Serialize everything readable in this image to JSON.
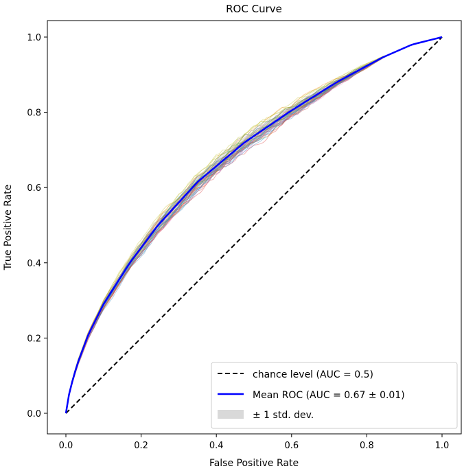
{
  "chart_data": {
    "type": "line",
    "title": "ROC Curve",
    "xlabel": "False Positive Rate",
    "ylabel": "True Positive Rate",
    "xlim": [
      -0.05,
      1.05
    ],
    "ylim": [
      -0.05,
      1.05
    ],
    "xticks": [
      "0.0",
      "0.2",
      "0.4",
      "0.6",
      "0.8",
      "1.0"
    ],
    "yticks": [
      "0.0",
      "0.2",
      "0.4",
      "0.6",
      "0.8",
      "1.0"
    ],
    "grid": false,
    "legend_position": "lower-right",
    "series": [
      {
        "name": "chance level (AUC = 0.5)",
        "color": "#000000",
        "style": "dashed",
        "x": [
          0,
          1
        ],
        "y": [
          0,
          1
        ]
      },
      {
        "name": "Mean ROC (AUC = 0.67 ± 0.01)",
        "color": "#0000ff",
        "style": "solid",
        "x": [
          0,
          0.01,
          0.03,
          0.06,
          0.1,
          0.17,
          0.245,
          0.35,
          0.475,
          0.6,
          0.72,
          0.84,
          0.92,
          1.0
        ],
        "y": [
          0,
          0.06,
          0.13,
          0.21,
          0.29,
          0.4,
          0.5,
          0.615,
          0.72,
          0.805,
          0.88,
          0.945,
          0.98,
          1.0
        ]
      }
    ],
    "band": {
      "name": "± 1 std. dev.",
      "color": "#d9d9d9",
      "std": 0.015
    },
    "fold_curve_colors": [
      "#1f77b4",
      "#ff7f0e",
      "#2ca02c",
      "#d62728",
      "#9467bd",
      "#8c564b",
      "#e377c2",
      "#7f7f7f",
      "#bcbd22",
      "#17becf"
    ]
  }
}
